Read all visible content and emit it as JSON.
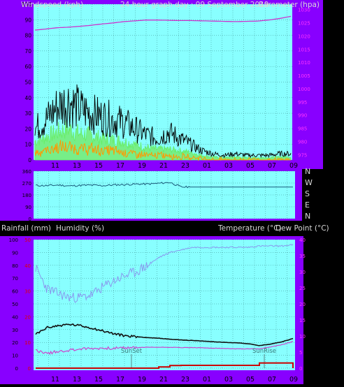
{
  "header": {
    "windspeed_label": "Windspeed (kph)",
    "title": "24 hour graph day : 09 September 2019",
    "barometer_label": "Barometer (hpa)"
  },
  "direction_labels": [
    "N",
    "W",
    "S",
    "E",
    "N"
  ],
  "lower_header": {
    "rainfall_label": "Rainfall (mm)",
    "humidity_label": "Humidity (%)",
    "temperature_label": "Temperature (°C)",
    "dewpoint_label": "Dew Point (°C)"
  },
  "colors": {
    "frame": "#8800ff",
    "plot_bg": "#88ffff",
    "grid": "#3a8b8b",
    "wind_gust": "#000000",
    "wind_avg": "#66ee66",
    "wind_low": "#ff9900",
    "barometer": "#cc33cc",
    "direction": "#1a5a7a",
    "humidity": "#8899ee",
    "temperature": "#111111",
    "dewpoint": "#cc44cc",
    "rainfall": "#cc0000",
    "left_axis_text": "#000000",
    "right_axis_text": "#ff33ff",
    "rain_axis_text": "#dd0000"
  },
  "chart_data": [
    {
      "type": "line",
      "panel": "wind",
      "x_tick_labels": [
        "11",
        "13",
        "15",
        "17",
        "19",
        "21",
        "23",
        "01",
        "03",
        "05",
        "07",
        "09"
      ],
      "y_ticks_left": [
        0,
        10,
        20,
        30,
        40,
        50,
        60,
        70,
        80,
        90,
        100
      ],
      "ylim": [
        0,
        100
      ],
      "y_ticks_right": [
        975,
        980,
        985,
        990,
        995,
        1000,
        1005,
        1010,
        1015,
        1020,
        1025,
        1030
      ],
      "ylim_right": [
        973,
        1032
      ],
      "series": [
        {
          "role": "gust",
          "values": [
            20,
            26,
            34,
            38,
            33,
            30,
            28,
            26,
            24,
            20,
            16,
            14,
            18,
            14,
            10,
            6,
            4,
            3,
            4,
            3,
            3,
            3,
            4,
            4
          ]
        },
        {
          "role": "average",
          "values": [
            12,
            15,
            18,
            20,
            17,
            16,
            14,
            13,
            12,
            10,
            8,
            7,
            7,
            6,
            5,
            3,
            2,
            1.5,
            2,
            1.5,
            1.5,
            1.5,
            2,
            2
          ]
        },
        {
          "role": "low",
          "values": [
            5,
            6,
            8,
            8,
            7,
            7,
            6,
            6,
            5,
            4,
            3,
            3,
            3,
            2,
            2,
            1,
            0,
            0,
            0,
            0,
            0,
            0,
            0,
            0
          ]
        },
        {
          "role": "barometer",
          "values": [
            1022.2,
            1022.6,
            1023.1,
            1023.3,
            1023.6,
            1024.0,
            1024.5,
            1024.9,
            1025.4,
            1025.7,
            1026.0,
            1026.0,
            1025.9,
            1025.8,
            1025.8,
            1025.7,
            1025.6,
            1025.5,
            1025.4,
            1025.5,
            1025.6,
            1026.0,
            1026.6,
            1027.4
          ]
        }
      ]
    },
    {
      "type": "line",
      "panel": "wind_direction",
      "y_ticks": [
        0,
        90,
        180,
        270,
        360
      ],
      "ylim": [
        0,
        360
      ],
      "series": [
        {
          "role": "direction",
          "values": [
            252,
            250,
            255,
            248,
            252,
            254,
            250,
            256,
            258,
            262,
            262,
            268,
            275,
            240,
            240,
            240,
            240,
            240,
            240,
            240,
            240,
            240,
            240,
            240
          ]
        }
      ]
    },
    {
      "type": "line",
      "panel": "temperature_humidity",
      "x_tick_labels": [
        "11",
        "13",
        "15",
        "17",
        "19",
        "21",
        "23",
        "01",
        "03",
        "05",
        "07",
        "09"
      ],
      "y_ticks_left": [
        0,
        10,
        20,
        30,
        40,
        50,
        60,
        70,
        80,
        90,
        100
      ],
      "ylim": [
        0,
        100
      ],
      "y_ticks_right": [
        0,
        5,
        10,
        15,
        20,
        25,
        30,
        35,
        40
      ],
      "ylim_right": [
        0,
        40
      ],
      "rain_ticks": [
        0,
        10,
        20,
        30,
        40,
        50
      ],
      "annotations": [
        "SunSet",
        "SunRise"
      ],
      "series": [
        {
          "role": "humidity",
          "values": [
            78,
            62,
            58,
            55,
            55,
            57,
            63,
            68,
            72,
            75,
            80,
            86,
            90,
            92,
            94,
            94,
            94,
            94,
            94,
            94,
            95,
            95,
            95,
            96
          ]
        },
        {
          "role": "temperature",
          "values": [
            10.5,
            12.6,
            13.2,
            13.6,
            13.2,
            12.5,
            11.6,
            10.7,
            10.1,
            9.8,
            9.5,
            9.3,
            9.0,
            8.8,
            8.6,
            8.4,
            8.2,
            8.0,
            7.9,
            7.6,
            7.0,
            7.5,
            8.2,
            9.2
          ]
        },
        {
          "role": "dewpoint",
          "values": [
            5.6,
            4.6,
            5.2,
            5.6,
            6.0,
            6.1,
            6.2,
            6.2,
            6.3,
            6.4,
            6.5,
            6.5,
            6.5,
            6.4,
            6.4,
            6.3,
            6.2,
            6.1,
            6.0,
            6.0,
            6.0,
            6.6,
            7.3,
            8.3
          ]
        },
        {
          "role": "rainfall",
          "values": [
            0,
            0,
            0,
            0,
            0,
            0,
            0,
            0,
            0,
            0,
            0,
            0.5,
            1.0,
            1.1,
            1.1,
            1.1,
            1.1,
            1.1,
            1.1,
            1.1,
            2.0,
            2.0,
            2.0,
            0
          ]
        }
      ]
    }
  ]
}
